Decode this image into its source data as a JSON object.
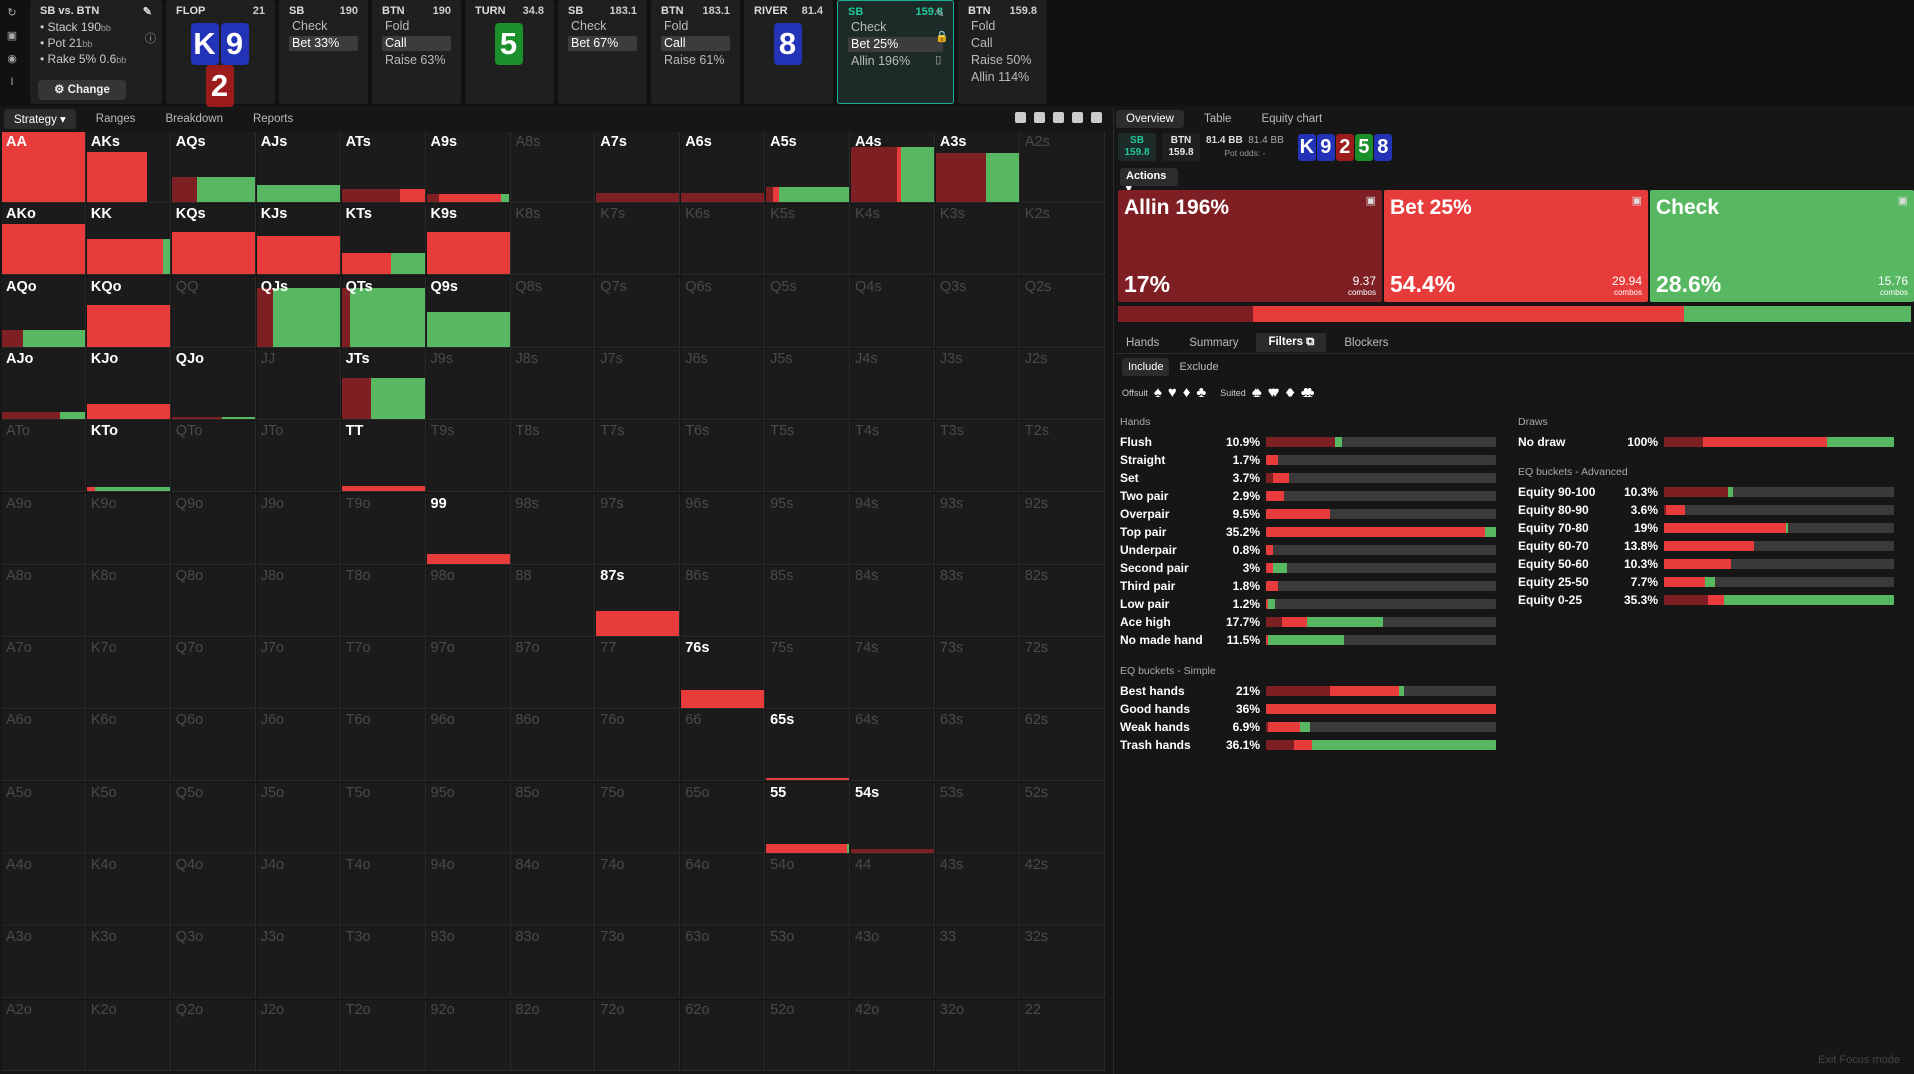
{
  "colors": {
    "allin": "#7e1f24",
    "bet": "#e83c3c",
    "check": "#58b862",
    "active": "#20c79a"
  },
  "sidebar_icons": [
    "refresh-icon",
    "save-icon",
    "gamepad-icon",
    "text-cursor-icon"
  ],
  "spot": {
    "title": "SB vs. BTN",
    "lines": [
      [
        "Stack 190",
        "bb"
      ],
      [
        "Pot 21",
        "bb"
      ],
      [
        "Rake 5% 0.6",
        "bb"
      ]
    ],
    "change": "Change",
    "edit_icon": "pencil-icon",
    "info_icon": "info-icon"
  },
  "steps": [
    {
      "id": "flop",
      "hd": "FLOP",
      "val": "21",
      "cards": [
        {
          "r": "K",
          "c": "blue"
        },
        {
          "r": "9",
          "c": "blue"
        },
        {
          "r": "2",
          "c": "red"
        }
      ]
    },
    {
      "id": "sb1",
      "hd": "SB",
      "val": "190",
      "acts": [
        {
          "t": "Check",
          "s": false
        },
        {
          "t": "Bet 33%",
          "s": true
        }
      ]
    },
    {
      "id": "btn1",
      "hd": "BTN",
      "val": "190",
      "acts": [
        {
          "t": "Fold",
          "s": false
        },
        {
          "t": "Call",
          "s": true
        },
        {
          "t": "Raise 63%",
          "s": false
        }
      ]
    },
    {
      "id": "turn",
      "hd": "TURN",
      "val": "34.8",
      "cards": [
        {
          "r": "5",
          "c": "green"
        }
      ]
    },
    {
      "id": "sb2",
      "hd": "SB",
      "val": "183.1",
      "acts": [
        {
          "t": "Check",
          "s": false
        },
        {
          "t": "Bet 67%",
          "s": true
        }
      ]
    },
    {
      "id": "btn2",
      "hd": "BTN",
      "val": "183.1",
      "acts": [
        {
          "t": "Fold",
          "s": false
        },
        {
          "t": "Call",
          "s": true
        },
        {
          "t": "Raise 61%",
          "s": false
        }
      ]
    },
    {
      "id": "river",
      "hd": "RIVER",
      "val": "81.4",
      "cards": [
        {
          "r": "8",
          "c": "blue"
        }
      ]
    },
    {
      "id": "sb3",
      "hd": "SB",
      "val": "159.8",
      "active": true,
      "acts": [
        {
          "t": "Check",
          "s": false
        },
        {
          "t": "Bet 25%",
          "s": true
        },
        {
          "t": "Allin 196%",
          "s": false
        }
      ]
    },
    {
      "id": "btn3",
      "hd": "BTN",
      "val": "159.8",
      "acts": [
        {
          "t": "Fold",
          "s": false
        },
        {
          "t": "Call",
          "s": false
        },
        {
          "t": "Raise 50%",
          "s": false
        },
        {
          "t": "Allin 114%",
          "s": false
        }
      ]
    }
  ],
  "left_tabs": [
    "Strategy",
    "Ranges",
    "Breakdown",
    "Reports"
  ],
  "ranks": [
    "A",
    "K",
    "Q",
    "J",
    "T",
    "9",
    "8",
    "7",
    "6",
    "5",
    "4",
    "3",
    "2"
  ],
  "grid": {
    "AA": [
      0,
      1,
      0
    ],
    "AKs": [
      0,
      0.72,
      0
    ],
    "AQs": [
      0.3,
      0,
      0.7
    ],
    "AJs": [
      0,
      0,
      1
    ],
    "ATs": [
      0.7,
      0.3,
      0
    ],
    "A9s": [
      0.15,
      0.75,
      0.1
    ],
    "A7s": [
      1,
      0,
      0
    ],
    "A6s": [
      1,
      0,
      0
    ],
    "A5s": [
      0.08,
      0.08,
      0.84
    ],
    "A4s": [
      0.55,
      0.05,
      0.4
    ],
    "A3s": [
      0.6,
      0,
      0.4
    ],
    "AKo": [
      0,
      1,
      0
    ],
    "KK": [
      0,
      0.92,
      0.08
    ],
    "KQs": [
      0,
      1,
      0
    ],
    "KJs": [
      0,
      1,
      0
    ],
    "KTs": [
      0,
      0.6,
      0.4
    ],
    "K9s": [
      0,
      1,
      0
    ],
    "AQo": [
      0.25,
      0,
      0.75
    ],
    "KQo": [
      0,
      1,
      0
    ],
    "QJs": [
      0.2,
      0,
      0.8
    ],
    "QTs": [
      0.1,
      0,
      0.9
    ],
    "Q9s": [
      0,
      0,
      1
    ],
    "AJo": [
      0.7,
      0,
      0.3
    ],
    "KJo": [
      0,
      1,
      0
    ],
    "QJo": [
      0.6,
      0,
      0.4
    ],
    "JTs": [
      0.35,
      0,
      0.65
    ],
    "KTo": [
      0,
      0.1,
      0.9
    ],
    "TT": [
      0,
      1,
      0
    ],
    "99": [
      0,
      1,
      0
    ],
    "87s": [
      0,
      1,
      0
    ],
    "76s": [
      0,
      1,
      0
    ],
    "65s": [
      0,
      1,
      0
    ],
    "55": [
      0,
      0.97,
      0.03
    ],
    "54s": [
      1,
      0,
      0
    ]
  },
  "grid_heights": {
    "AA": 1,
    "AKs": 0.72,
    "AQs": 0.36,
    "AJs": 0.25,
    "ATs": 0.18,
    "A9s": 0.12,
    "A7s": 0.13,
    "A6s": 0.13,
    "A5s": 0.22,
    "A4s": 0.78,
    "A3s": 0.7,
    "AKo": 0.72,
    "KK": 0.5,
    "KQs": 0.6,
    "KJs": 0.55,
    "KTs": 0.3,
    "K9s": 0.6,
    "AQo": 0.24,
    "KQo": 0.6,
    "QJs": 0.84,
    "QTs": 0.84,
    "Q9s": 0.5,
    "AJo": 0.1,
    "KJo": 0.22,
    "QJo": 0.03,
    "JTs": 0.58,
    "KTo": 0.06,
    "TT": 0.08,
    "99": 0.13,
    "87s": 0.35,
    "76s": 0.26,
    "65s": 0.03,
    "55": 0.12,
    "54s": 0.06
  },
  "right_tabs": [
    "Overview",
    "Table",
    "Equity chart"
  ],
  "pot": {
    "sb": [
      "SB",
      "159.8"
    ],
    "btn": [
      "BTN",
      "159.8"
    ],
    "pot1": "81.4 BB",
    "pot2": "81.4 BB",
    "odds": "Pot odds: -",
    "cards": [
      {
        "r": "K",
        "c": "blue"
      },
      {
        "r": "9",
        "c": "blue"
      },
      {
        "r": "2",
        "c": "red"
      },
      {
        "r": "5",
        "c": "green"
      },
      {
        "r": "8",
        "c": "blue"
      }
    ]
  },
  "actions_btn": "Actions",
  "actions": [
    {
      "name": "Allin 196%",
      "pct": "17%",
      "combos": "9.37",
      "unit": "combos",
      "color": "#7e1f24",
      "freq": 0.17
    },
    {
      "name": "Bet 25%",
      "pct": "54.4%",
      "combos": "29.94",
      "unit": "combos",
      "color": "#e83c3c",
      "freq": 0.544
    },
    {
      "name": "Check",
      "pct": "28.6%",
      "combos": "15.76",
      "unit": "combos",
      "color": "#58b862",
      "freq": 0.286
    }
  ],
  "sub_tabs": [
    "Hands",
    "Summary",
    "Filters",
    "Blockers"
  ],
  "include": [
    "Include",
    "Exclude"
  ],
  "suits": {
    "offsuit": "Offsuit",
    "suited": "Suited",
    "offsuit_glyphs": [
      "♠",
      "♥",
      "♦",
      "♣"
    ],
    "suited_glyphs": [
      "♠♠",
      "♥♥",
      "♦♦",
      "♣♣"
    ]
  },
  "hands_title": "Hands",
  "hands": [
    {
      "n": "Flush",
      "v": "10.9%",
      "f": [
        0.3,
        0,
        0.03
      ]
    },
    {
      "n": "Straight",
      "v": "1.7%",
      "f": [
        0,
        0.05,
        0
      ]
    },
    {
      "n": "Set",
      "v": "3.7%",
      "f": [
        0.03,
        0.07,
        0
      ]
    },
    {
      "n": "Two pair",
      "v": "2.9%",
      "f": [
        0,
        0.08,
        0
      ]
    },
    {
      "n": "Overpair",
      "v": "9.5%",
      "f": [
        0,
        0.28,
        0
      ]
    },
    {
      "n": "Top pair",
      "v": "35.2%",
      "f": [
        0,
        0.95,
        0.05
      ]
    },
    {
      "n": "Underpair",
      "v": "0.8%",
      "f": [
        0,
        0.03,
        0
      ]
    },
    {
      "n": "Second pair",
      "v": "3%",
      "f": [
        0,
        0.03,
        0.06
      ]
    },
    {
      "n": "Third pair",
      "v": "1.8%",
      "f": [
        0,
        0.05,
        0
      ]
    },
    {
      "n": "Low pair",
      "v": "1.2%",
      "f": [
        0,
        0.01,
        0.03
      ]
    },
    {
      "n": "Ace high",
      "v": "17.7%",
      "f": [
        0.07,
        0.11,
        0.33
      ]
    },
    {
      "n": "No made hand",
      "v": "11.5%",
      "f": [
        0,
        0.01,
        0.33
      ]
    }
  ],
  "eqs_title": "EQ buckets - Simple",
  "eq_simple": [
    {
      "n": "Best hands",
      "v": "21%",
      "f": [
        0.28,
        0.3,
        0.02
      ]
    },
    {
      "n": "Good hands",
      "v": "36%",
      "f": [
        0,
        1,
        0
      ]
    },
    {
      "n": "Weak hands",
      "v": "6.9%",
      "f": [
        0.01,
        0.14,
        0.04
      ]
    },
    {
      "n": "Trash hands",
      "v": "36.1%",
      "f": [
        0.12,
        0.08,
        0.8
      ]
    }
  ],
  "draws_title": "Draws",
  "draws": [
    {
      "n": "No draw",
      "v": "100%",
      "f": [
        0.17,
        0.54,
        0.29
      ]
    }
  ],
  "eqa_title": "EQ buckets - Advanced",
  "eq_adv": [
    {
      "n": "Equity 90-100",
      "v": "10.3%",
      "f": [
        0.28,
        0,
        0.02
      ]
    },
    {
      "n": "Equity 80-90",
      "v": "3.6%",
      "f": [
        0.01,
        0.08,
        0
      ]
    },
    {
      "n": "Equity 70-80",
      "v": "19%",
      "f": [
        0,
        0.53,
        0.01
      ]
    },
    {
      "n": "Equity 60-70",
      "v": "13.8%",
      "f": [
        0,
        0.39,
        0
      ]
    },
    {
      "n": "Equity 50-60",
      "v": "10.3%",
      "f": [
        0,
        0.29,
        0
      ]
    },
    {
      "n": "Equity 25-50",
      "v": "7.7%",
      "f": [
        0,
        0.18,
        0.04
      ]
    },
    {
      "n": "Equity 0-25",
      "v": "35.3%",
      "f": [
        0.19,
        0.07,
        0.74
      ]
    }
  ],
  "exit_label": "Exit Focus mode"
}
